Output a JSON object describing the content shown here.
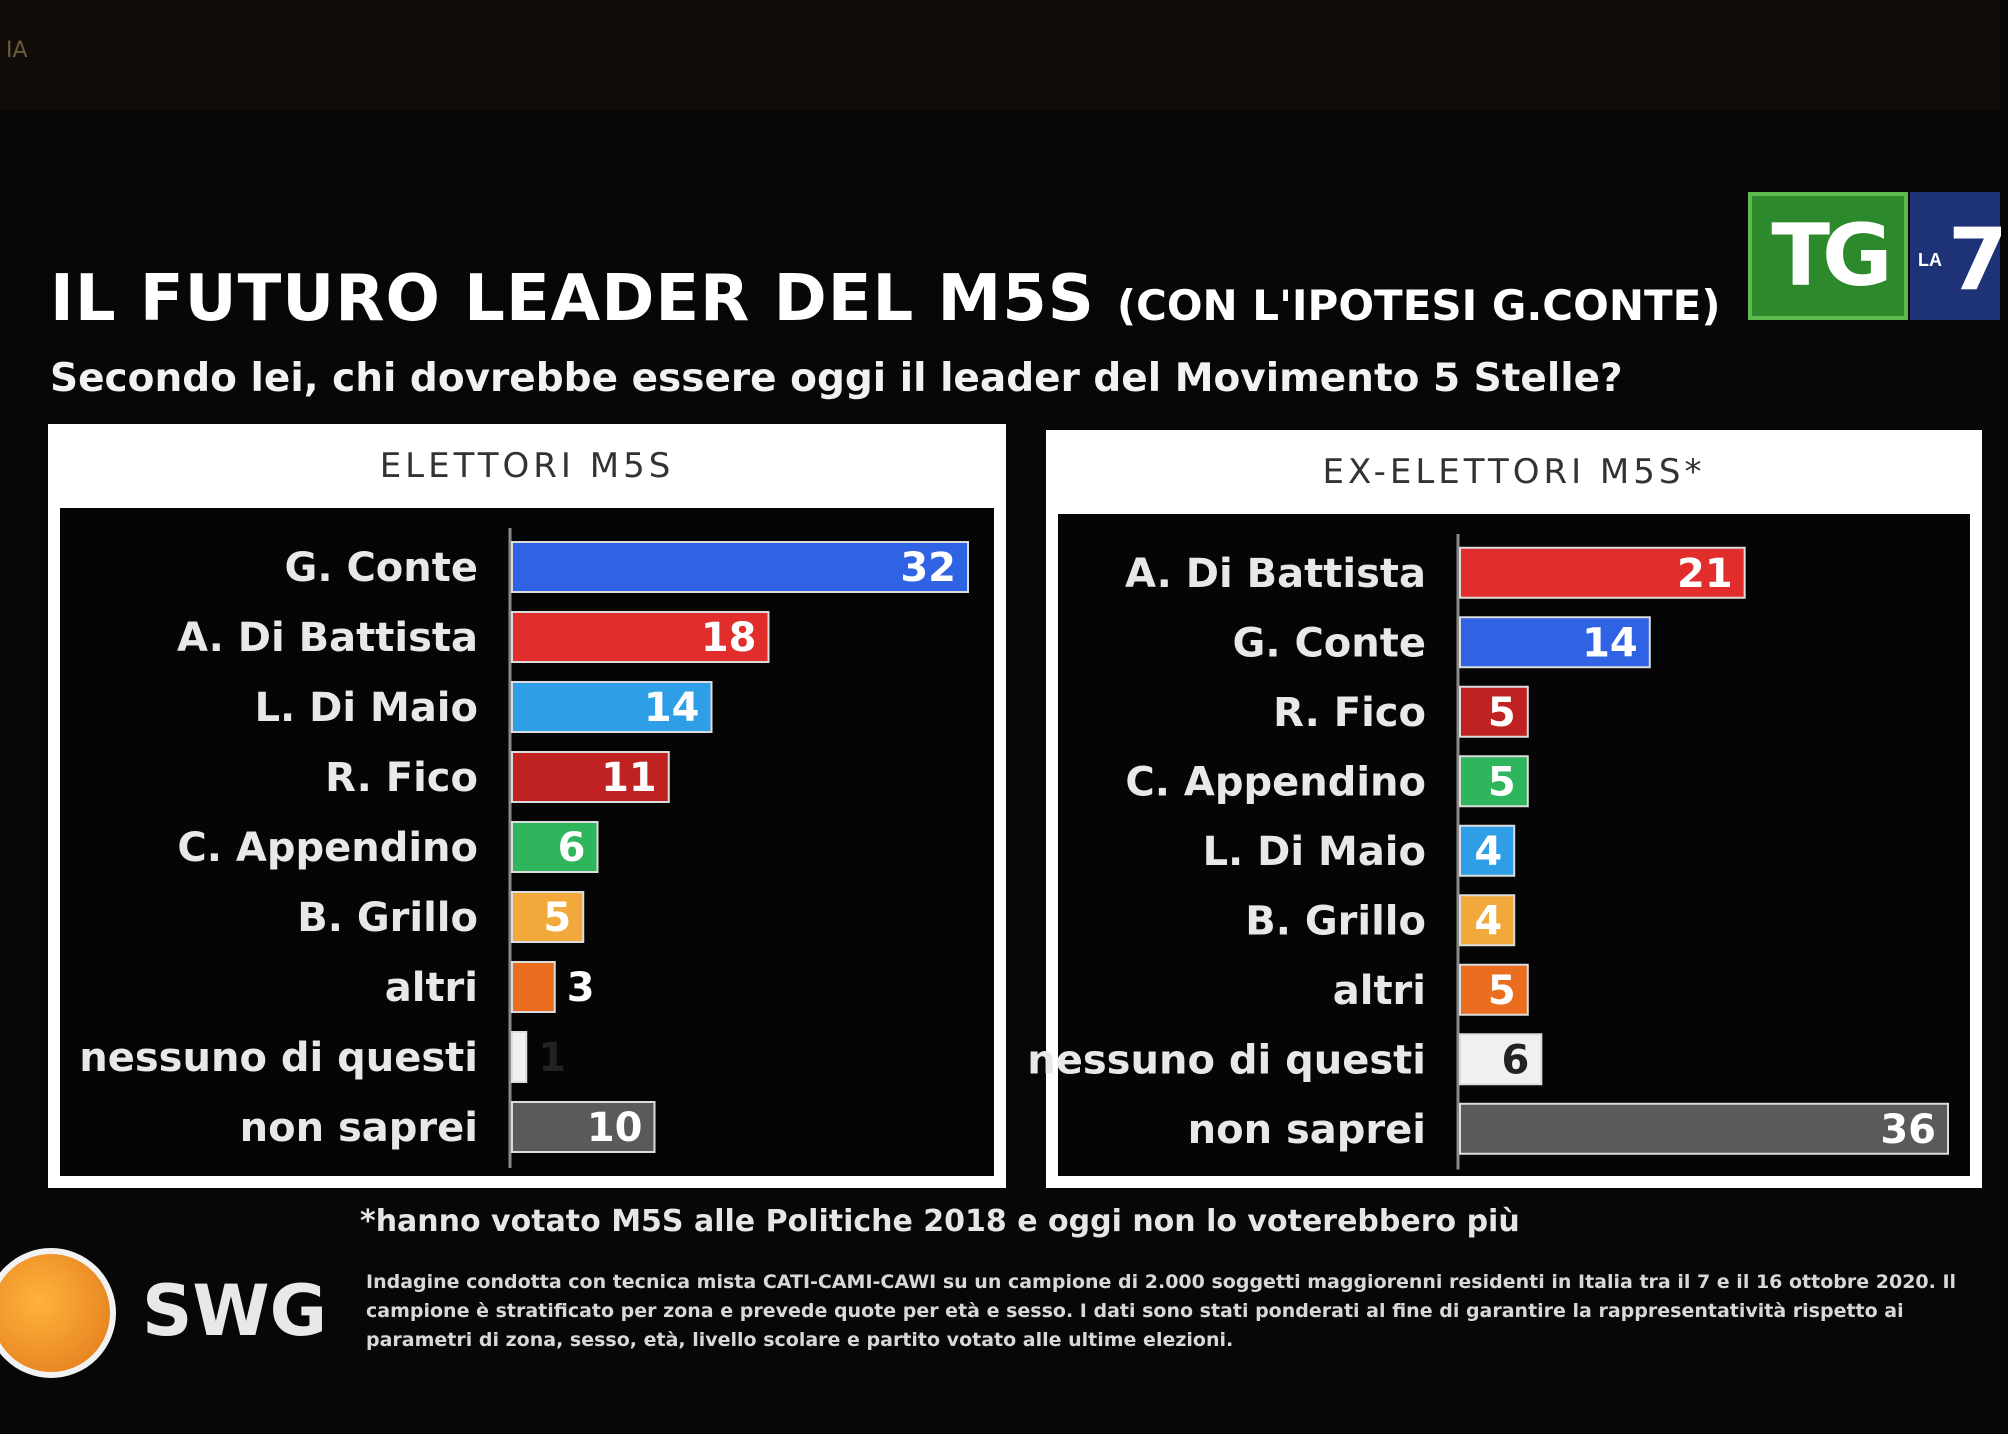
{
  "channel_label": "IA",
  "title": "IL FUTURO LEADER DEL M5S",
  "title_suffix": "(CON L'IPOTESI G.CONTE)",
  "subtitle": "Secondo lei, chi dovrebbe essere oggi il leader del Movimento 5 Stelle?",
  "logo": {
    "tg": "TG",
    "la": "LA",
    "seven": "7"
  },
  "chart_data": [
    {
      "type": "bar",
      "orientation": "horizontal",
      "title": "ELETTORI M5S",
      "unit": "%",
      "xlim": [
        0,
        32
      ],
      "categories": [
        "G. Conte",
        "A. Di Battista",
        "L. Di Maio",
        "R. Fico",
        "C. Appendino",
        "B. Grillo",
        "altri",
        "nessuno di questi",
        "non saprei"
      ],
      "values": [
        32,
        18,
        14,
        11,
        6,
        5,
        3,
        1,
        10
      ],
      "colors": [
        "#2f63e4",
        "#e22d2d",
        "#2e9fe6",
        "#c02222",
        "#2fb55b",
        "#f2a93b",
        "#ea6d20",
        "#f0f0f0",
        "#5a5a5a"
      ]
    },
    {
      "type": "bar",
      "orientation": "horizontal",
      "title": "EX-ELETTORI M5S*",
      "unit": "%",
      "xlim": [
        0,
        36
      ],
      "categories": [
        "A. Di Battista",
        "G. Conte",
        "R. Fico",
        "C. Appendino",
        "L. Di Maio",
        "B. Grillo",
        "altri",
        "nessuno di questi",
        "non saprei"
      ],
      "values": [
        21,
        14,
        5,
        5,
        4,
        4,
        5,
        6,
        36
      ],
      "colors": [
        "#e22d2d",
        "#2f63e4",
        "#c02222",
        "#2fb55b",
        "#2e9fe6",
        "#f2a93b",
        "#ea6d20",
        "#f0f0f0",
        "#5a5a5a"
      ]
    }
  ],
  "footnote": "*hanno votato M5S alle Politiche 2018 e oggi non lo voterebbero più",
  "source": {
    "name": "SWG",
    "methodology": "Indagine condotta con tecnica mista CATI-CAMI-CAWI su un campione di 2.000 soggetti maggiorenni residenti in Italia tra il 7 e il 16 ottobre 2020. Il campione è stratificato per zona e prevede quote per età e sesso. I dati sono stati ponderati al fine di garantire la rappresentatività rispetto ai parametri di zona, sesso, età, livello scolare e partito votato alle ultime elezioni."
  }
}
